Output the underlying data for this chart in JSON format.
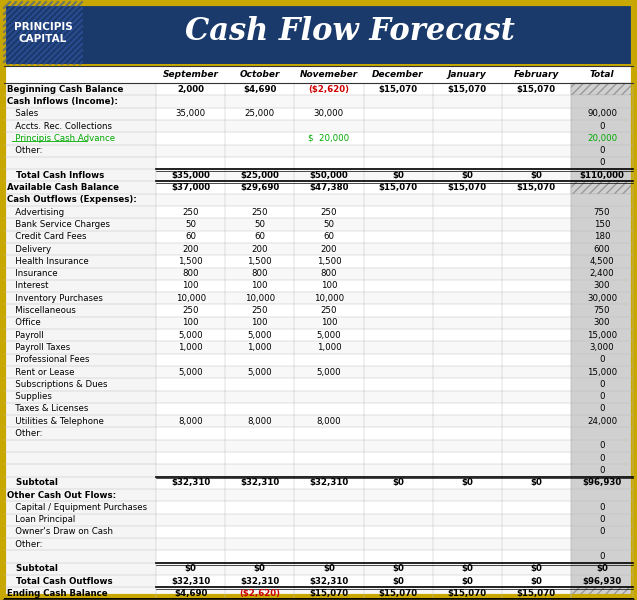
{
  "title": "Cash Flow Forecast",
  "company": "PRINCIPIS\nCAPITAL",
  "header_bg": "#1a3a6b",
  "header_text_color": "#ffffff",
  "columns": [
    "September",
    "October",
    "Novemeber",
    "December",
    "January",
    "February",
    "Total"
  ],
  "rows": [
    {
      "label": "Beginning Cash Balance",
      "bold": true,
      "values": [
        "2,000",
        "$4,690",
        "($2,620)",
        "$15,070",
        "$15,070",
        "$15,070",
        ""
      ],
      "val_colors": [
        "#000000",
        "#000000",
        "#cc0000",
        "#000000",
        "#000000",
        "#000000",
        "#000000"
      ],
      "hatch_total": true
    },
    {
      "label": "Cash Inflows (Income):",
      "bold": true,
      "values": [
        "",
        "",
        "",
        "",
        "",
        "",
        ""
      ],
      "val_colors": [
        "#000000",
        "#000000",
        "#000000",
        "#000000",
        "#000000",
        "#000000",
        "#000000"
      ]
    },
    {
      "label": "   Sales",
      "bold": false,
      "values": [
        "35,000",
        "25,000",
        "30,000",
        "",
        "",
        "",
        "90,000"
      ],
      "val_colors": [
        "#000000",
        "#000000",
        "#000000",
        "#000000",
        "#000000",
        "#000000",
        "#000000"
      ]
    },
    {
      "label": "   Accts. Rec. Collections",
      "bold": false,
      "values": [
        "",
        "",
        "",
        "",
        "",
        "",
        "0"
      ],
      "val_colors": [
        "#000000",
        "#000000",
        "#000000",
        "#000000",
        "#000000",
        "#000000",
        "#000000"
      ]
    },
    {
      "label": "   Principis Cash Advance",
      "bold": false,
      "link": true,
      "values": [
        "",
        "",
        "$  20,000",
        "",
        "",
        "",
        "20,000"
      ],
      "val_colors": [
        "#00aa00",
        "#00aa00",
        "#00aa00",
        "#00aa00",
        "#00aa00",
        "#00aa00",
        "#00aa00"
      ]
    },
    {
      "label": "   Other:",
      "bold": false,
      "values": [
        "",
        "",
        "",
        "",
        "",
        "",
        "0"
      ],
      "val_colors": [
        "#000000",
        "#000000",
        "#000000",
        "#000000",
        "#000000",
        "#000000",
        "#000000"
      ]
    },
    {
      "label": "",
      "bold": false,
      "values": [
        "",
        "",
        "",
        "",
        "",
        "",
        "0"
      ],
      "val_colors": [
        "#000000",
        "#000000",
        "#000000",
        "#000000",
        "#000000",
        "#000000",
        "#000000"
      ]
    },
    {
      "label": "   Total Cash Inflows",
      "bold": true,
      "values": [
        "$35,000",
        "$25,000",
        "$50,000",
        "$0",
        "$0",
        "$0",
        "$110,000"
      ],
      "val_colors": [
        "#000000",
        "#000000",
        "#000000",
        "#000000",
        "#000000",
        "#000000",
        "#000000"
      ],
      "top_border": true
    },
    {
      "label": "Available Cash Balance",
      "bold": true,
      "values": [
        "$37,000",
        "$29,690",
        "$47,380",
        "$15,070",
        "$15,070",
        "$15,070",
        ""
      ],
      "val_colors": [
        "#000000",
        "#000000",
        "#000000",
        "#000000",
        "#000000",
        "#000000",
        "#000000"
      ],
      "top_border": true,
      "hatch_total": true
    },
    {
      "label": "Cash Outflows (Expenses):",
      "bold": true,
      "values": [
        "",
        "",
        "",
        "",
        "",
        "",
        ""
      ],
      "val_colors": [
        "#000000",
        "#000000",
        "#000000",
        "#000000",
        "#000000",
        "#000000",
        "#000000"
      ]
    },
    {
      "label": "   Advertising",
      "bold": false,
      "values": [
        "250",
        "250",
        "250",
        "",
        "",
        "",
        "750"
      ],
      "val_colors": [
        "#000000",
        "#000000",
        "#000000",
        "#000000",
        "#000000",
        "#000000",
        "#000000"
      ]
    },
    {
      "label": "   Bank Service Charges",
      "bold": false,
      "values": [
        "50",
        "50",
        "50",
        "",
        "",
        "",
        "150"
      ],
      "val_colors": [
        "#000000",
        "#000000",
        "#000000",
        "#000000",
        "#000000",
        "#000000",
        "#000000"
      ]
    },
    {
      "label": "   Credit Card Fees",
      "bold": false,
      "values": [
        "60",
        "60",
        "60",
        "",
        "",
        "",
        "180"
      ],
      "val_colors": [
        "#000000",
        "#000000",
        "#000000",
        "#000000",
        "#000000",
        "#000000",
        "#000000"
      ]
    },
    {
      "label": "   Delivery",
      "bold": false,
      "values": [
        "200",
        "200",
        "200",
        "",
        "",
        "",
        "600"
      ],
      "val_colors": [
        "#000000",
        "#000000",
        "#000000",
        "#000000",
        "#000000",
        "#000000",
        "#000000"
      ]
    },
    {
      "label": "   Health Insurance",
      "bold": false,
      "values": [
        "1,500",
        "1,500",
        "1,500",
        "",
        "",
        "",
        "4,500"
      ],
      "val_colors": [
        "#000000",
        "#000000",
        "#000000",
        "#000000",
        "#000000",
        "#000000",
        "#000000"
      ]
    },
    {
      "label": "   Insurance",
      "bold": false,
      "values": [
        "800",
        "800",
        "800",
        "",
        "",
        "",
        "2,400"
      ],
      "val_colors": [
        "#000000",
        "#000000",
        "#000000",
        "#000000",
        "#000000",
        "#000000",
        "#000000"
      ]
    },
    {
      "label": "   Interest",
      "bold": false,
      "values": [
        "100",
        "100",
        "100",
        "",
        "",
        "",
        "300"
      ],
      "val_colors": [
        "#000000",
        "#000000",
        "#000000",
        "#000000",
        "#000000",
        "#000000",
        "#000000"
      ]
    },
    {
      "label": "   Inventory Purchases",
      "bold": false,
      "values": [
        "10,000",
        "10,000",
        "10,000",
        "",
        "",
        "",
        "30,000"
      ],
      "val_colors": [
        "#000000",
        "#000000",
        "#000000",
        "#000000",
        "#000000",
        "#000000",
        "#000000"
      ]
    },
    {
      "label": "   Miscellaneous",
      "bold": false,
      "values": [
        "250",
        "250",
        "250",
        "",
        "",
        "",
        "750"
      ],
      "val_colors": [
        "#000000",
        "#000000",
        "#000000",
        "#000000",
        "#000000",
        "#000000",
        "#000000"
      ]
    },
    {
      "label": "   Office",
      "bold": false,
      "values": [
        "100",
        "100",
        "100",
        "",
        "",
        "",
        "300"
      ],
      "val_colors": [
        "#000000",
        "#000000",
        "#000000",
        "#000000",
        "#000000",
        "#000000",
        "#000000"
      ]
    },
    {
      "label": "   Payroll",
      "bold": false,
      "values": [
        "5,000",
        "5,000",
        "5,000",
        "",
        "",
        "",
        "15,000"
      ],
      "val_colors": [
        "#000000",
        "#000000",
        "#000000",
        "#000000",
        "#000000",
        "#000000",
        "#000000"
      ]
    },
    {
      "label": "   Payroll Taxes",
      "bold": false,
      "values": [
        "1,000",
        "1,000",
        "1,000",
        "",
        "",
        "",
        "3,000"
      ],
      "val_colors": [
        "#000000",
        "#000000",
        "#000000",
        "#000000",
        "#000000",
        "#000000",
        "#000000"
      ]
    },
    {
      "label": "   Professional Fees",
      "bold": false,
      "values": [
        "",
        "",
        "",
        "",
        "",
        "",
        "0"
      ],
      "val_colors": [
        "#000000",
        "#000000",
        "#000000",
        "#000000",
        "#000000",
        "#000000",
        "#000000"
      ]
    },
    {
      "label": "   Rent or Lease",
      "bold": false,
      "values": [
        "5,000",
        "5,000",
        "5,000",
        "",
        "",
        "",
        "15,000"
      ],
      "val_colors": [
        "#000000",
        "#000000",
        "#000000",
        "#000000",
        "#000000",
        "#000000",
        "#000000"
      ]
    },
    {
      "label": "   Subscriptions & Dues",
      "bold": false,
      "values": [
        "",
        "",
        "",
        "",
        "",
        "",
        "0"
      ],
      "val_colors": [
        "#000000",
        "#000000",
        "#000000",
        "#000000",
        "#000000",
        "#000000",
        "#000000"
      ]
    },
    {
      "label": "   Supplies",
      "bold": false,
      "values": [
        "",
        "",
        "",
        "",
        "",
        "",
        "0"
      ],
      "val_colors": [
        "#000000",
        "#000000",
        "#000000",
        "#000000",
        "#000000",
        "#000000",
        "#000000"
      ]
    },
    {
      "label": "   Taxes & Licenses",
      "bold": false,
      "values": [
        "",
        "",
        "",
        "",
        "",
        "",
        "0"
      ],
      "val_colors": [
        "#000000",
        "#000000",
        "#000000",
        "#000000",
        "#000000",
        "#000000",
        "#000000"
      ]
    },
    {
      "label": "   Utilities & Telephone",
      "bold": false,
      "values": [
        "8,000",
        "8,000",
        "8,000",
        "",
        "",
        "",
        "24,000"
      ],
      "val_colors": [
        "#000000",
        "#000000",
        "#000000",
        "#000000",
        "#000000",
        "#000000",
        "#000000"
      ]
    },
    {
      "label": "   Other:",
      "bold": false,
      "values": [
        "",
        "",
        "",
        "",
        "",
        "",
        ""
      ],
      "val_colors": [
        "#000000",
        "#000000",
        "#000000",
        "#000000",
        "#000000",
        "#000000",
        "#000000"
      ]
    },
    {
      "label": "",
      "bold": false,
      "values": [
        "",
        "",
        "",
        "",
        "",
        "",
        "0"
      ],
      "val_colors": [
        "#000000",
        "#000000",
        "#000000",
        "#000000",
        "#000000",
        "#000000",
        "#000000"
      ]
    },
    {
      "label": "",
      "bold": false,
      "values": [
        "",
        "",
        "",
        "",
        "",
        "",
        "0"
      ],
      "val_colors": [
        "#000000",
        "#000000",
        "#000000",
        "#000000",
        "#000000",
        "#000000",
        "#000000"
      ]
    },
    {
      "label": "",
      "bold": false,
      "values": [
        "",
        "",
        "",
        "",
        "",
        "",
        "0"
      ],
      "val_colors": [
        "#000000",
        "#000000",
        "#000000",
        "#000000",
        "#000000",
        "#000000",
        "#000000"
      ]
    },
    {
      "label": "   Subtotal",
      "bold": true,
      "values": [
        "$32,310",
        "$32,310",
        "$32,310",
        "$0",
        "$0",
        "$0",
        "$96,930"
      ],
      "val_colors": [
        "#000000",
        "#000000",
        "#000000",
        "#000000",
        "#000000",
        "#000000",
        "#000000"
      ],
      "top_border": true
    },
    {
      "label": "Other Cash Out Flows:",
      "bold": true,
      "values": [
        "",
        "",
        "",
        "",
        "",
        "",
        ""
      ],
      "val_colors": [
        "#000000",
        "#000000",
        "#000000",
        "#000000",
        "#000000",
        "#000000",
        "#000000"
      ]
    },
    {
      "label": "   Capital / Equipment Purchases",
      "bold": false,
      "values": [
        "",
        "",
        "",
        "",
        "",
        "",
        "0"
      ],
      "val_colors": [
        "#000000",
        "#000000",
        "#000000",
        "#000000",
        "#000000",
        "#000000",
        "#000000"
      ]
    },
    {
      "label": "   Loan Principal",
      "bold": false,
      "values": [
        "",
        "",
        "",
        "",
        "",
        "",
        "0"
      ],
      "val_colors": [
        "#000000",
        "#000000",
        "#000000",
        "#000000",
        "#000000",
        "#000000",
        "#000000"
      ]
    },
    {
      "label": "   Owner's Draw on Cash",
      "bold": false,
      "values": [
        "",
        "",
        "",
        "",
        "",
        "",
        "0"
      ],
      "val_colors": [
        "#000000",
        "#000000",
        "#000000",
        "#000000",
        "#000000",
        "#000000",
        "#000000"
      ]
    },
    {
      "label": "   Other:",
      "bold": false,
      "values": [
        "",
        "",
        "",
        "",
        "",
        "",
        ""
      ],
      "val_colors": [
        "#000000",
        "#000000",
        "#000000",
        "#000000",
        "#000000",
        "#000000",
        "#000000"
      ]
    },
    {
      "label": "",
      "bold": false,
      "values": [
        "",
        "",
        "",
        "",
        "",
        "",
        "0"
      ],
      "val_colors": [
        "#000000",
        "#000000",
        "#000000",
        "#000000",
        "#000000",
        "#000000",
        "#000000"
      ]
    },
    {
      "label": "   Subtotal",
      "bold": true,
      "values": [
        "$0",
        "$0",
        "$0",
        "$0",
        "$0",
        "$0",
        "$0"
      ],
      "val_colors": [
        "#000000",
        "#000000",
        "#000000",
        "#000000",
        "#000000",
        "#000000",
        "#000000"
      ],
      "top_border": true
    },
    {
      "label": "   Total Cash Outflows",
      "bold": true,
      "values": [
        "$32,310",
        "$32,310",
        "$32,310",
        "$0",
        "$0",
        "$0",
        "$96,930"
      ],
      "val_colors": [
        "#000000",
        "#000000",
        "#000000",
        "#000000",
        "#000000",
        "#000000",
        "#000000"
      ]
    },
    {
      "label": "Ending Cash Balance",
      "bold": true,
      "values": [
        "$4,690",
        "($2,620)",
        "$15,070",
        "$15,070",
        "$15,070",
        "$15,070",
        ""
      ],
      "val_colors": [
        "#000000",
        "#cc0000",
        "#000000",
        "#000000",
        "#000000",
        "#000000",
        "#000000"
      ],
      "top_border": true,
      "double_border": true,
      "hatch_total": true
    }
  ],
  "outer_border_color": "#c8a800",
  "grid_color": "#bbbbbb",
  "label_col_bg": "#f5f5f5",
  "total_col_bg": "#d0d0d0",
  "data_bg": "#ffffff"
}
